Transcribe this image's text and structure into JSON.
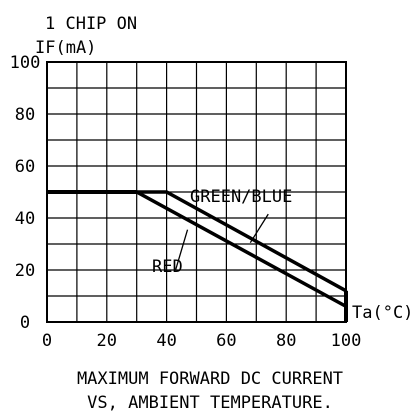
{
  "chart_data": {
    "type": "line",
    "header_line1": "1 CHIP ON",
    "ylabel": "IF(mA)",
    "xlabel": "Ta(°C)",
    "title": "MAXIMUM FORWARD DC CURRENT",
    "subtitle": "VS, AMBIENT TEMPERATURE.",
    "xlim": [
      0,
      100
    ],
    "ylim": [
      0,
      100
    ],
    "x_ticks": [
      "0",
      "20",
      "40",
      "60",
      "80",
      "100"
    ],
    "y_ticks": [
      "0",
      "20",
      "40",
      "60",
      "80",
      "100"
    ],
    "grid": true,
    "series": [
      {
        "name": "GREEN/BLUE",
        "x": [
          0,
          40,
          100
        ],
        "y": [
          50,
          50,
          12
        ]
      },
      {
        "name": "RED",
        "x": [
          0,
          30,
          100
        ],
        "y": [
          50,
          50,
          6
        ]
      }
    ],
    "flat_segment": {
      "x": [
        0,
        30
      ],
      "y": 50
    },
    "vertical_drop": {
      "x": 100,
      "y": [
        0,
        12
      ]
    }
  }
}
